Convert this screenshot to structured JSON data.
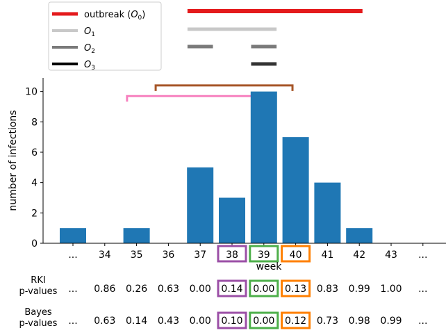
{
  "chart_data": {
    "type": "bar",
    "categories": [
      "...",
      "34",
      "35",
      "36",
      "37",
      "38",
      "39",
      "40",
      "41",
      "42",
      "43",
      "..."
    ],
    "values": [
      1,
      0,
      1,
      0,
      5,
      3,
      10,
      7,
      4,
      1,
      0,
      0
    ],
    "xlabel": "week",
    "ylabel": "number of infections",
    "ylim": [
      0,
      10.9
    ],
    "yticks": [
      0,
      2,
      4,
      6,
      8,
      10
    ],
    "bar_color": "#1f77b4",
    "highlighted_weeks": [
      {
        "week": "38",
        "color": "#9b4fa6"
      },
      {
        "week": "39",
        "color": "#4daf4a"
      },
      {
        "week": "40",
        "color": "#ff7f00"
      }
    ],
    "legend": {
      "placement": "top-left",
      "entries": [
        {
          "prefix": "outbreak (",
          "var": "O",
          "sub": "0",
          "suffix": ")",
          "color": "#e41a1c",
          "stroke": "thick"
        },
        {
          "prefix": "",
          "var": "O",
          "sub": "1",
          "suffix": "",
          "color": "#c8c8c8",
          "stroke": "normal"
        },
        {
          "prefix": "",
          "var": "O",
          "sub": "2",
          "suffix": "",
          "color": "#7a7a7a",
          "stroke": "normal"
        },
        {
          "prefix": "",
          "var": "O",
          "sub": "3",
          "suffix": "",
          "color": "#000000",
          "stroke": "normal"
        }
      ]
    },
    "outbreak_segments": [
      {
        "name": "O0",
        "color": "#e41a1c",
        "start": 36.6,
        "end": 42.1
      },
      {
        "name": "O1",
        "color": "#c8c8c8",
        "start": 36.6,
        "end": 39.4
      },
      {
        "name": "O2",
        "color": "#7a7a7a",
        "start": 36.6,
        "end": 37.4
      },
      {
        "name": "O2",
        "color": "#7a7a7a",
        "start": 38.6,
        "end": 39.4
      },
      {
        "name": "O3",
        "color": "#333333",
        "start": 38.6,
        "end": 39.4
      }
    ],
    "brackets": [
      {
        "color": "#f781bf",
        "start": 34.7,
        "end": 38.9,
        "y": 9.7
      },
      {
        "color": "#a65628",
        "start": 35.6,
        "end": 39.9,
        "y": 10.4
      }
    ],
    "pvalue_rows": [
      {
        "label": [
          "RKI",
          "p-values"
        ],
        "values": [
          "...",
          "0.86",
          "0.26",
          "0.63",
          "0.00",
          "0.14",
          "0.00",
          "0.13",
          "0.83",
          "0.99",
          "1.00",
          "..."
        ]
      },
      {
        "label": [
          "Bayes",
          "p-values"
        ],
        "values": [
          "...",
          "0.63",
          "0.14",
          "0.43",
          "0.00",
          "0.10",
          "0.00",
          "0.12",
          "0.73",
          "0.98",
          "0.99",
          "..."
        ]
      }
    ]
  }
}
